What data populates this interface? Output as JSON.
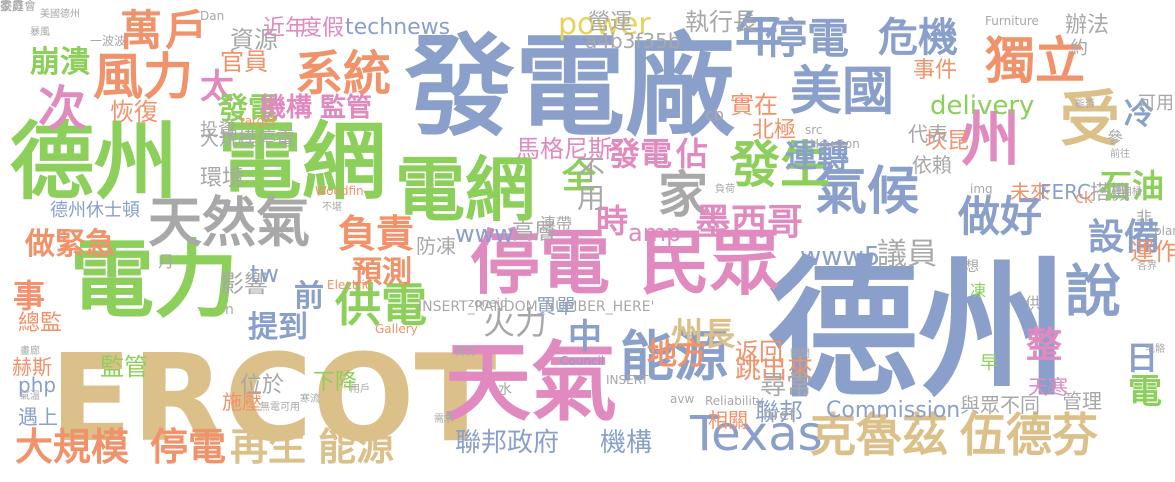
{
  "palette": {
    "blue": "#8a9fc9",
    "green": "#8ccf5a",
    "pink": "#e08ac0",
    "orange": "#f0926a",
    "tan": "#dcc08a",
    "gray": "#a8a8a8",
    "yellow": "#e6d35a",
    "teal": "#78c6b0"
  },
  "words": [
    {
      "t": "德州",
      "c": "blue",
      "w": 800
    },
    {
      "t": "發電廠",
      "c": "blue",
      "w": 800
    },
    {
      "t": "德州",
      "c": "green",
      "w": 700
    },
    {
      "t": "電網",
      "c": "green",
      "w": 700
    },
    {
      "t": "ERCOT",
      "c": "tan",
      "w": 700
    },
    {
      "t": "電力",
      "c": "green",
      "w": 700
    },
    {
      "t": "停電",
      "c": "pink",
      "w": 700
    },
    {
      "t": "民眾",
      "c": "pink",
      "w": 700
    },
    {
      "t": "天氣",
      "c": "pink",
      "w": 700
    },
    {
      "t": "天然氣",
      "c": "gray",
      "w": 600
    },
    {
      "t": "電網",
      "c": "green",
      "w": 700
    },
    {
      "t": "美國",
      "c": "blue",
      "w": 600
    },
    {
      "t": "氣候",
      "c": "blue",
      "w": 600
    },
    {
      "t": "能源",
      "c": "blue",
      "w": 600
    },
    {
      "t": "Texas",
      "c": "blue",
      "w": 500
    },
    {
      "t": "克魯茲",
      "c": "tan",
      "w": 600
    },
    {
      "t": "伍德芬",
      "c": "tan",
      "w": 600
    },
    {
      "t": "系統",
      "c": "orange",
      "w": 600
    },
    {
      "t": "風力",
      "c": "orange",
      "w": 600
    },
    {
      "t": "年",
      "c": "blue",
      "w": 600
    },
    {
      "t": "停電",
      "c": "blue",
      "w": 600
    },
    {
      "t": "危機",
      "c": "blue",
      "w": 600
    },
    {
      "t": "獨立",
      "c": "orange",
      "w": 600
    },
    {
      "t": "州",
      "c": "pink",
      "w": 600
    },
    {
      "t": "受",
      "c": "tan",
      "w": 600
    },
    {
      "t": "次",
      "c": "pink",
      "w": 600
    },
    {
      "t": "發生",
      "c": "green",
      "w": 600
    },
    {
      "t": "家",
      "c": "gray",
      "w": 600
    },
    {
      "t": "做好",
      "c": "blue",
      "w": 600
    },
    {
      "t": "說",
      "c": "blue",
      "w": 600
    },
    {
      "t": "供電",
      "c": "green",
      "w": 600
    },
    {
      "t": "負責",
      "c": "orange",
      "w": 600
    },
    {
      "t": "大規模",
      "c": "orange",
      "w": 600
    },
    {
      "t": "停電",
      "c": "orange",
      "w": 600
    },
    {
      "t": "再生",
      "c": "tan",
      "w": 600
    },
    {
      "t": "能源",
      "c": "tan",
      "w": 600
    },
    {
      "t": "設備",
      "c": "blue",
      "w": 600
    },
    {
      "t": "冷",
      "c": "blue",
      "w": 600
    },
    {
      "t": "石油",
      "c": "green",
      "w": 600
    },
    {
      "t": "墨西哥",
      "c": "pink",
      "w": 600
    },
    {
      "t": "運轉",
      "c": "blue",
      "w": 600
    },
    {
      "t": "時",
      "c": "pink",
      "w": 600
    },
    {
      "t": "全",
      "c": "green",
      "w": 600
    },
    {
      "t": "不用",
      "c": "gray",
      "w": 500
    },
    {
      "t": "發電",
      "c": "pink",
      "w": 600
    },
    {
      "t": "佔",
      "c": "pink",
      "w": 600
    },
    {
      "t": "議員",
      "c": "gray",
      "w": 500
    },
    {
      "t": "預測",
      "c": "orange",
      "w": 600
    },
    {
      "t": "緊急",
      "c": "orange",
      "w": 600
    },
    {
      "t": "做",
      "c": "orange",
      "w": 600
    },
    {
      "t": "提到",
      "c": "blue",
      "w": 600
    },
    {
      "t": "前",
      "c": "blue",
      "w": 600
    },
    {
      "t": "火力",
      "c": "gray",
      "w": 500
    },
    {
      "t": "中",
      "c": "blue",
      "w": 600
    },
    {
      "t": "州長",
      "c": "tan",
      "w": 600
    },
    {
      "t": "地方",
      "c": "orange",
      "w": 600
    },
    {
      "t": "返回",
      "c": "orange",
      "w": 500
    },
    {
      "t": "跳出來",
      "c": "orange",
      "w": 500
    },
    {
      "t": "尋常",
      "c": "gray",
      "w": 500
    },
    {
      "t": "整",
      "c": "pink",
      "w": 600
    },
    {
      "t": "日",
      "c": "blue",
      "w": 600
    },
    {
      "t": "電",
      "c": "green",
      "w": 600
    },
    {
      "t": "聯邦政府",
      "c": "blue",
      "w": 500
    },
    {
      "t": "機構",
      "c": "blue",
      "w": 500
    },
    {
      "t": "聯邦",
      "c": "blue",
      "w": 500
    },
    {
      "t": "Commission",
      "c": "blue",
      "w": 400
    },
    {
      "t": "與眾不同",
      "c": "gray",
      "w": 400
    },
    {
      "t": "管理",
      "c": "gray",
      "w": 400
    },
    {
      "t": "萬",
      "c": "orange",
      "w": 600
    },
    {
      "t": "戶",
      "c": "orange",
      "w": 600
    },
    {
      "t": "崩潰",
      "c": "green",
      "w": 600
    },
    {
      "t": "太",
      "c": "pink",
      "w": 600
    },
    {
      "t": "發電",
      "c": "green",
      "w": 600
    },
    {
      "t": "機構",
      "c": "pink",
      "w": 600
    },
    {
      "t": "監管",
      "c": "pink",
      "w": 600
    },
    {
      "t": "恢復",
      "c": "orange",
      "w": 400
    },
    {
      "t": "官員",
      "c": "orange",
      "w": 400
    },
    {
      "t": "資源",
      "c": "gray",
      "w": 400
    },
    {
      "t": "近年",
      "c": "pink",
      "w": 400
    },
    {
      "t": "度假",
      "c": "pink",
      "w": 400
    },
    {
      "t": "technews",
      "c": "blue",
      "w": 400
    },
    {
      "t": "power",
      "c": "yellow",
      "w": 500
    },
    {
      "t": "營運",
      "c": "gray",
      "w": 400
    },
    {
      "t": "執行長",
      "c": "gray",
      "w": 400
    },
    {
      "t": "a4b3f35b",
      "c": "gray",
      "w": 400
    },
    {
      "t": "辦法",
      "c": "gray",
      "w": 400
    },
    {
      "t": "約",
      "c": "gray",
      "w": 400
    },
    {
      "t": "delivery",
      "c": "green",
      "w": 400
    },
    {
      "t": "事件",
      "c": "orange",
      "w": 400
    },
    {
      "t": "坎昆",
      "c": "orange",
      "w": 400
    },
    {
      "t": "實在",
      "c": "orange",
      "w": 400
    },
    {
      "t": "北極",
      "c": "orange",
      "w": 400
    },
    {
      "t": "馬格尼斯",
      "c": "pink",
      "w": 400
    },
    {
      "t": "大規模停電",
      "c": "gray",
      "w": 400
    },
    {
      "t": "投資",
      "c": "gray",
      "w": 400
    },
    {
      "t": "環境",
      "c": "gray",
      "w": 400
    },
    {
      "t": "依賴",
      "c": "gray",
      "w": 400
    },
    {
      "t": "代表",
      "c": "gray",
      "w": 400
    },
    {
      "t": "搭機",
      "c": "gray",
      "w": 400
    },
    {
      "t": "未來",
      "c": "orange",
      "w": 400
    },
    {
      "t": "FERC",
      "c": "blue",
      "w": 400
    },
    {
      "t": "德州休士頓",
      "c": "blue",
      "w": 400
    },
    {
      "t": "www",
      "c": "blue",
      "w": 400
    },
    {
      "t": "www5",
      "c": "blue",
      "w": 400
    },
    {
      "t": "amp",
      "c": "pink",
      "w": 400
    },
    {
      "t": "高層",
      "c": "gray",
      "w": 400
    },
    {
      "t": "防凍",
      "c": "gray",
      "w": 400
    },
    {
      "t": "事",
      "c": "orange",
      "w": 600
    },
    {
      "t": "總監",
      "c": "orange",
      "w": 400
    },
    {
      "t": "影響",
      "c": "gray",
      "w": 400
    },
    {
      "t": "tw",
      "c": "blue",
      "w": 400
    },
    {
      "t": "位於",
      "c": "gray",
      "w": 500
    },
    {
      "t": "下降",
      "c": "green",
      "w": 500
    },
    {
      "t": "施壓",
      "c": "orange",
      "w": 400
    },
    {
      "t": "監管",
      "c": "green",
      "w": 400
    },
    {
      "t": "赫斯",
      "c": "orange",
      "w": 400
    },
    {
      "t": "php",
      "c": "blue",
      "w": 400
    },
    {
      "t": "遇上",
      "c": "blue",
      "w": 400
    },
    {
      "t": "買單",
      "c": "blue",
      "w": 400
    },
    {
      "t": "相關",
      "c": "orange",
      "w": 400
    },
    {
      "t": "運作",
      "c": "orange",
      "w": 400
    },
    {
      "t": "cb",
      "c": "gray",
      "w": 400
    },
    {
      "t": "非",
      "c": "gray",
      "w": 400
    },
    {
      "t": "可用",
      "c": "gray",
      "w": 400
    },
    {
      "t": "參",
      "c": "gray",
      "w": 400
    },
    {
      "t": "天寒",
      "c": "pink",
      "w": 400
    },
    {
      "t": "早",
      "c": "green",
      "w": 400
    },
    {
      "t": "凍",
      "c": "green",
      "w": 400
    },
    {
      "t": "供",
      "c": "gray",
      "w": 400
    },
    {
      "t": "想",
      "c": "gray",
      "w": 400
    },
    {
      "t": "INSERT_RANDOM_NUMBER_HERE'",
      "c": "gray",
      "w": 400
    },
    {
      "t": "連帶",
      "c": "gray",
      "w": 400
    },
    {
      "t": "href",
      "c": "gray",
      "w": 400
    },
    {
      "t": "ck",
      "c": "orange",
      "w": 400
    },
    {
      "t": "月",
      "c": "gray",
      "w": 400
    },
    {
      "t": "水",
      "c": "gray",
      "w": 400
    },
    {
      "t": "a",
      "c": "gray",
      "w": 400
    },
    {
      "t": "n",
      "c": "gray",
      "w": 400
    },
    {
      "t": "Houston",
      "c": "gray",
      "w": 400
    },
    {
      "t": "src",
      "c": "gray",
      "w": 400
    },
    {
      "t": "target",
      "c": "orange",
      "w": 400
    },
    {
      "t": "Woodfin",
      "c": "orange",
      "w": 400
    },
    {
      "t": "Electric",
      "c": "orange",
      "w": 400
    },
    {
      "t": "Gallery",
      "c": "orange",
      "w": 400
    },
    {
      "t": "INSERT",
      "c": "gray",
      "w": 400
    },
    {
      "t": "Council",
      "c": "blue",
      "w": 400
    },
    {
      "t": "zoneid",
      "c": "gray",
      "w": 400
    },
    {
      "t": "avw",
      "c": "gray",
      "w": 400
    },
    {
      "t": "Reliability",
      "c": "gray",
      "w": 400
    },
    {
      "t": "Furniture",
      "c": "gray",
      "w": 400
    },
    {
      "t": "Dan",
      "c": "gray",
      "w": 400
    },
    {
      "t": "img",
      "c": "gray",
      "w": 400
    },
    {
      "t": "_blank'",
      "c": "gray",
      "w": 400
    },
    {
      "t": "毛骼",
      "c": "gray",
      "w": 400
    },
    {
      "t": "暴風",
      "c": "gray",
      "w": 400
    },
    {
      "t": "美國德州",
      "c": "gray",
      "w": 400
    },
    {
      "t": "一波波",
      "c": "gray",
      "w": 400
    },
    {
      "t": "能否",
      "c": "gray",
      "w": 400
    },
    {
      "t": "前往",
      "c": "gray",
      "w": 400
    },
    {
      "t": "專用桶",
      "c": "gray",
      "w": 400
    },
    {
      "t": "各界",
      "c": "gray",
      "w": 400
    },
    {
      "t": "畫廊",
      "c": "gray",
      "w": 400
    },
    {
      "t": "氣溫",
      "c": "gray",
      "w": 400
    },
    {
      "t": "無電可用",
      "c": "gray",
      "w": 400
    },
    {
      "t": "寒流",
      "c": "gray",
      "w": 400
    },
    {
      "t": "需求",
      "c": "gray",
      "w": 400
    },
    {
      "t": "關閉",
      "c": "gray",
      "w": 400
    },
    {
      "t": "不堪",
      "c": "gray",
      "w": 400
    },
    {
      "t": "負荷",
      "c": "gray",
      "w": 400
    },
    {
      "t": "情況",
      "c": "gray",
      "w": 400
    },
    {
      "t": "用戶",
      "c": "gray",
      "w": 400
    },
    {
      "t": "家庭",
      "c": "gray",
      "w": 400
    },
    {
      "t": "委員會",
      "c": "gray",
      "w": 400
    }
  ]
}
